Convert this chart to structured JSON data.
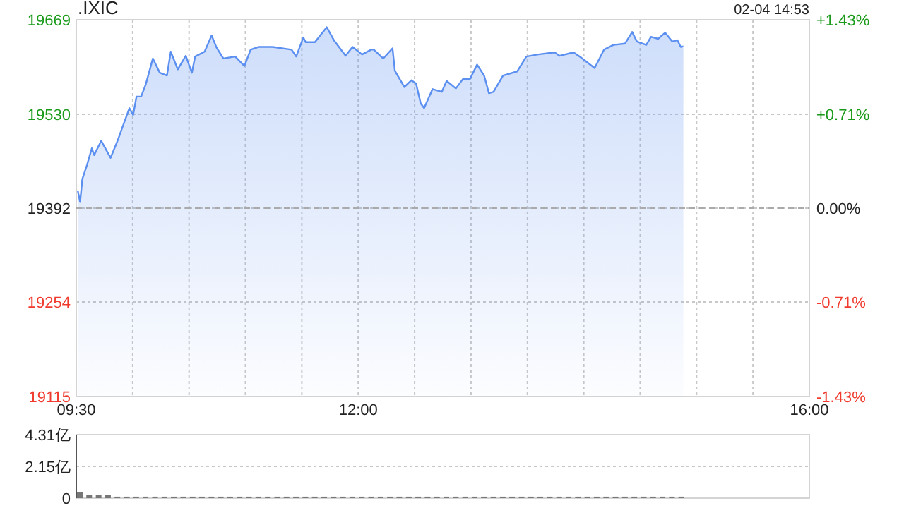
{
  "chart_data": [
    {
      "type": "area",
      "title": ".IXIC",
      "annotations": [
        "02-04 14:53"
      ],
      "color": "#5b8ff0",
      "grid": true,
      "marker": "none",
      "line_style": "solid",
      "x": [
        9.513,
        9.534,
        9.554,
        9.596,
        9.638,
        9.659,
        9.721,
        9.804,
        9.866,
        9.909,
        9.971,
        10.004,
        10.034,
        10.075,
        10.116,
        10.179,
        10.241,
        10.304,
        10.338,
        10.4,
        10.471,
        10.525,
        10.554,
        10.638,
        10.7,
        10.741,
        10.804,
        10.909,
        10.991,
        11.046,
        11.116,
        11.241,
        11.409,
        11.45,
        11.513,
        11.534,
        11.616,
        11.721,
        11.784,
        11.888,
        11.95,
        12.034,
        12.116,
        12.138,
        12.221,
        12.304,
        12.325,
        12.409,
        12.471,
        12.513,
        12.554,
        12.584,
        12.659,
        12.741,
        12.784,
        12.866,
        12.929,
        12.991,
        13.054,
        13.116,
        13.159,
        13.2,
        13.284,
        13.409,
        13.491,
        13.596,
        13.741,
        13.784,
        13.909,
        13.971,
        14.096,
        14.179,
        14.263,
        14.366,
        14.429,
        14.471,
        14.554,
        14.596,
        14.659,
        14.721,
        14.784,
        14.83,
        14.86,
        14.883
      ],
      "values": [
        19418,
        19401,
        19435,
        19456,
        19480,
        19470,
        19491,
        19466,
        19491,
        19511,
        19539,
        19529,
        19556,
        19556,
        19574,
        19612,
        19591,
        19587,
        19622,
        19596,
        19616,
        19591,
        19615,
        19622,
        19646,
        19629,
        19612,
        19615,
        19601,
        19625,
        19629,
        19629,
        19625,
        19615,
        19643,
        19636,
        19636,
        19658,
        19639,
        19616,
        19629,
        19618,
        19625,
        19625,
        19612,
        19627,
        19594,
        19570,
        19580,
        19575,
        19546,
        19539,
        19567,
        19563,
        19579,
        19568,
        19582,
        19582,
        19603,
        19587,
        19561,
        19563,
        19587,
        19593,
        19615,
        19618,
        19621,
        19616,
        19621,
        19614,
        19598,
        19625,
        19632,
        19634,
        19651,
        19637,
        19632,
        19644,
        19641,
        19650,
        19637,
        19639,
        19629,
        19630
      ],
      "xlim": [
        9.5,
        16
      ],
      "xticks": [
        {
          "value": 9.5,
          "label": "09:30"
        },
        {
          "value": 10,
          "label": null
        },
        {
          "value": 10.5,
          "label": null
        },
        {
          "value": 11,
          "label": null
        },
        {
          "value": 11.5,
          "label": null
        },
        {
          "value": 12,
          "label": "12:00"
        },
        {
          "value": 12.5,
          "label": null
        },
        {
          "value": 13,
          "label": null
        },
        {
          "value": 13.5,
          "label": null
        },
        {
          "value": 14,
          "label": null
        },
        {
          "value": 14.5,
          "label": null
        },
        {
          "value": 15,
          "label": null
        },
        {
          "value": 15.5,
          "label": null
        },
        {
          "value": 16,
          "label": "16:00"
        }
      ],
      "ylim": [
        19115,
        19669
      ],
      "yticks": [
        19115,
        19254,
        19392,
        19530,
        19669
      ],
      "y2lim": [
        -1.43,
        1.43
      ],
      "y2ticks": [
        {
          "value": -1.43,
          "label": "-1.43%"
        },
        {
          "value": -0.71,
          "label": "-0.71%"
        },
        {
          "value": 0,
          "label": "0.00%"
        },
        {
          "value": 0.71,
          "label": "+0.71%"
        },
        {
          "value": 1.43,
          "label": "+1.43%"
        }
      ],
      "ref_lines": [
        {
          "axis": "y",
          "value": 19392,
          "color": "#aaaaaa",
          "line_style": "dashed"
        }
      ]
    },
    {
      "type": "bar",
      "color": "#777777",
      "grid": "y",
      "tick_labels": "y",
      "x": [
        9.5,
        9.583,
        9.667,
        9.75,
        9.833,
        9.917,
        10,
        10.083,
        10.167,
        10.25,
        10.333,
        10.417,
        10.5,
        10.583,
        10.667,
        10.75,
        10.833,
        10.917,
        11,
        11.083,
        11.167,
        11.25,
        11.333,
        11.417,
        11.5,
        11.583,
        11.667,
        11.75,
        11.833,
        11.917,
        12,
        12.083,
        12.167,
        12.25,
        12.333,
        12.417,
        12.5,
        12.583,
        12.667,
        12.75,
        12.833,
        12.917,
        13,
        13.083,
        13.167,
        13.25,
        13.333,
        13.417,
        13.5,
        13.583,
        13.667,
        13.75,
        13.833,
        13.917,
        14,
        14.083,
        14.167,
        14.25,
        14.333,
        14.417,
        14.5,
        14.583,
        14.667,
        14.75,
        14.833
      ],
      "values": [
        0.4,
        0.2,
        0.2,
        0.2,
        0.1,
        0.1,
        0.1,
        0.1,
        0.1,
        0.1,
        0.1,
        0.1,
        0.1,
        0.1,
        0.1,
        0.1,
        0.1,
        0.1,
        0.1,
        0.1,
        0.1,
        0.1,
        0.1,
        0.1,
        0.1,
        0.1,
        0.1,
        0.1,
        0.1,
        0.1,
        0.1,
        0.1,
        0.1,
        0.1,
        0.1,
        0.1,
        0.1,
        0.1,
        0.1,
        0.1,
        0.1,
        0.1,
        0.1,
        0.1,
        0.1,
        0.1,
        0.1,
        0.1,
        0.1,
        0.1,
        0.1,
        0.1,
        0.1,
        0.1,
        0.1,
        0.1,
        0.1,
        0.1,
        0.1,
        0.1,
        0.1,
        0.1,
        0.1,
        0.1,
        0.1
      ],
      "xlim": [
        9.5,
        16
      ],
      "ylim": [
        0,
        4.31
      ],
      "yticks": [
        0,
        {
          "value": 2.15,
          "label": "2.15亿"
        },
        {
          "value": 4.31,
          "label": "4.31亿"
        }
      ]
    }
  ]
}
